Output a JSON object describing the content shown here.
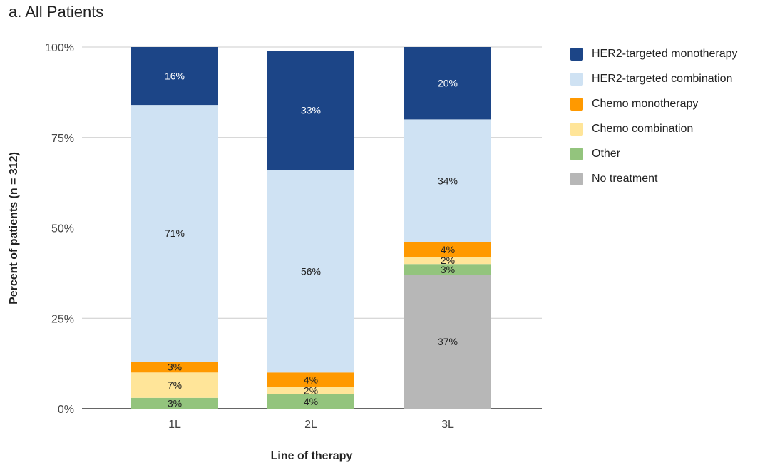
{
  "title": "a. All Patients",
  "chart_data": {
    "type": "bar",
    "stacked": true,
    "title": "a. All Patients",
    "xlabel": "Line of therapy",
    "ylabel": "Percent of patients (n = 312)",
    "ylim": [
      0,
      100
    ],
    "yticks": [
      "0%",
      "25%",
      "50%",
      "75%",
      "100%"
    ],
    "grid": true,
    "legend_position": "right",
    "categories": [
      "1L",
      "2L",
      "3L"
    ],
    "series": [
      {
        "name": "No treatment",
        "color": "#b7b7b7",
        "values": [
          0,
          0,
          37
        ],
        "labels": [
          "",
          "",
          "37%"
        ]
      },
      {
        "name": "Other",
        "color": "#93c47d",
        "values": [
          3,
          4,
          3
        ],
        "labels": [
          "3%",
          "4%",
          "3%"
        ]
      },
      {
        "name": "Chemo combination",
        "color": "#ffe599",
        "values": [
          7,
          2,
          2
        ],
        "labels": [
          "7%",
          "2%",
          "2%"
        ]
      },
      {
        "name": "Chemo monotherapy",
        "color": "#ff9900",
        "values": [
          3,
          4,
          4
        ],
        "labels": [
          "3%",
          "4%",
          "4%"
        ]
      },
      {
        "name": "HER2-targeted combination",
        "color": "#cfe2f3",
        "values": [
          71,
          56,
          34
        ],
        "labels": [
          "71%",
          "56%",
          "34%"
        ]
      },
      {
        "name": "HER2-targeted monotherapy",
        "color": "#1c4587",
        "values": [
          16,
          33,
          20
        ],
        "labels": [
          "16%",
          "33%",
          "20%"
        ]
      }
    ],
    "legend_order": [
      "HER2-targeted monotherapy",
      "HER2-targeted combination",
      "Chemo monotherapy",
      "Chemo combination",
      "Other",
      "No treatment"
    ]
  }
}
